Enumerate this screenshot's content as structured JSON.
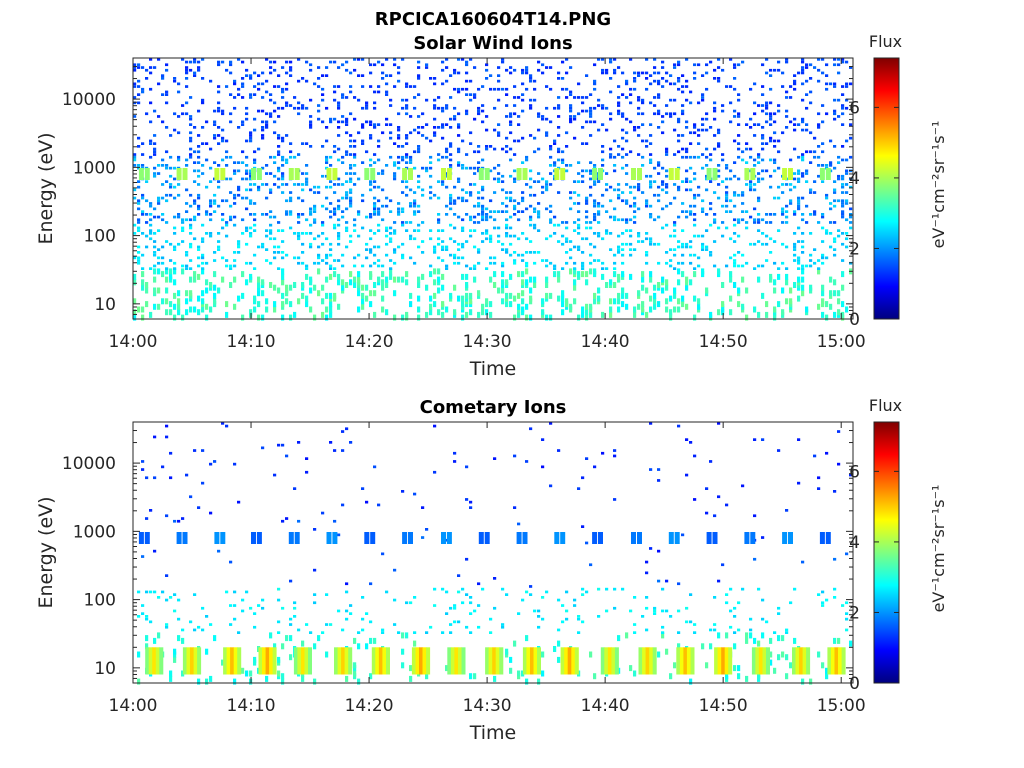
{
  "figure_title": "RPCICA160604T14.PNG",
  "chart_data": [
    {
      "type": "heatmap",
      "title": "Solar Wind Ions",
      "xlabel": "Time",
      "ylabel": "Energy (eV)",
      "x_ticks": [
        "14:00",
        "14:10",
        "14:20",
        "14:30",
        "14:40",
        "14:50",
        "15:00"
      ],
      "y_ticks": [
        "10",
        "100",
        "1000",
        "10000"
      ],
      "y_scale": "log",
      "xlim": [
        "14:00",
        "15:01"
      ],
      "ylim": [
        6,
        40000
      ],
      "colorbar": {
        "label": "eV⁻¹cm⁻²sr⁻¹s⁻¹",
        "title": "Flux",
        "ticks": [
          "0",
          "2",
          "4",
          "6"
        ],
        "range": [
          0,
          7.4
        ],
        "colormap": "jet"
      },
      "features": {
        "beam_energy_eV": 800,
        "beam_flux": 3.8,
        "beam_times_min": [
          1.0,
          4.2,
          7.4,
          10.5,
          13.7,
          16.9,
          20.1,
          23.3,
          26.6,
          29.8,
          33.0,
          36.2,
          39.4,
          42.7,
          45.9,
          49.1,
          52.3,
          55.5,
          58.7
        ],
        "high_energy_flux": 1.1,
        "mid_energy_flux": 2.2,
        "low_energy_flux": 3.0
      }
    },
    {
      "type": "heatmap",
      "title": "Cometary Ions",
      "xlabel": "Time",
      "ylabel": "Energy (eV)",
      "x_ticks": [
        "14:00",
        "14:10",
        "14:20",
        "14:30",
        "14:40",
        "14:50",
        "15:00"
      ],
      "y_ticks": [
        "10",
        "100",
        "1000",
        "10000"
      ],
      "y_scale": "log",
      "xlim": [
        "14:00",
        "15:01"
      ],
      "ylim": [
        6,
        40000
      ],
      "colorbar": {
        "label": "eV⁻¹cm⁻²sr⁻¹s⁻¹",
        "title": "Flux",
        "ticks": [
          "0",
          "2",
          "4",
          "6"
        ],
        "range": [
          0,
          7.4
        ],
        "colormap": "jet"
      },
      "features": {
        "beam_energy_eV": 800,
        "beam_flux": 1.6,
        "beam_times_min": [
          1.0,
          4.2,
          7.4,
          10.5,
          13.7,
          16.9,
          20.1,
          23.3,
          26.6,
          29.8,
          33.0,
          36.2,
          39.4,
          42.7,
          45.9,
          49.1,
          52.3,
          55.5,
          58.7
        ],
        "low_energy_burst_times_min": [
          1.8,
          5.0,
          8.4,
          11.4,
          14.4,
          17.8,
          21.0,
          24.4,
          27.4,
          30.6,
          33.8,
          37.0,
          40.4,
          43.6,
          46.8,
          50.0,
          53.2,
          56.6,
          59.6
        ],
        "low_energy_burst_flux": 4.8,
        "high_energy_flux": 1.0,
        "mid_energy_flux": 2.4
      }
    }
  ]
}
